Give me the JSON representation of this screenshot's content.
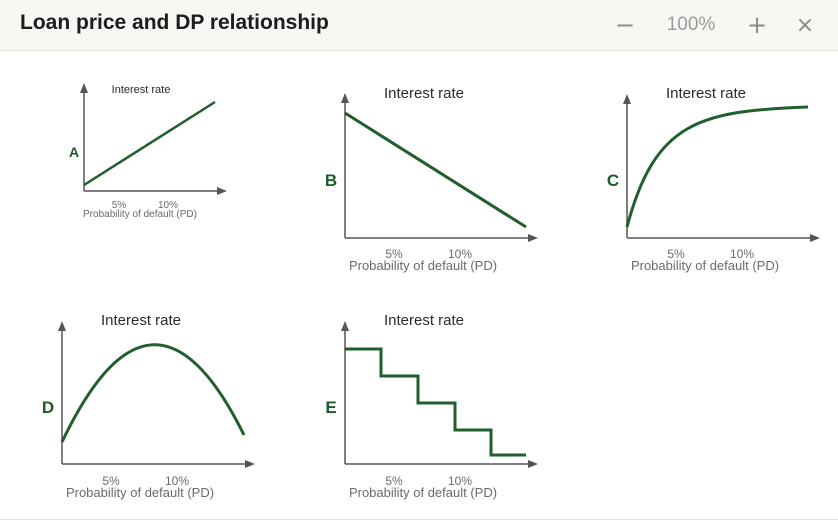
{
  "window": {
    "title": "Loan price and DP relationship",
    "zoom": "100%",
    "zoom_out_symbol": "−",
    "zoom_in_symbol": "+",
    "close_symbol": "×"
  },
  "colors": {
    "curve": "#215e2e",
    "axis": "#555555",
    "letter": "#1f5c2a"
  },
  "charts": [
    {
      "letter": "A",
      "ylabel": "Interest rate",
      "xlabel": "Probability of default (PD)",
      "ticks": [
        "5%",
        "10%"
      ],
      "shape": "increasing line"
    },
    {
      "letter": "B",
      "ylabel": "Interest rate",
      "xlabel": "Probability of default (PD)",
      "ticks": [
        "5%",
        "10%"
      ],
      "shape": "decreasing line"
    },
    {
      "letter": "C",
      "ylabel": "Interest rate",
      "xlabel": "Probability of default (PD)",
      "ticks": [
        "5%",
        "10%"
      ],
      "shape": "concave saturating curve"
    },
    {
      "letter": "D",
      "ylabel": "Interest rate",
      "xlabel": "Probability of default (PD)",
      "ticks": [
        "5%",
        "10%"
      ],
      "shape": "inverted U curve"
    },
    {
      "letter": "E",
      "ylabel": "Interest rate",
      "xlabel": "Probability of default (PD)",
      "ticks": [
        "5%",
        "10%"
      ],
      "shape": "decreasing step function"
    }
  ]
}
